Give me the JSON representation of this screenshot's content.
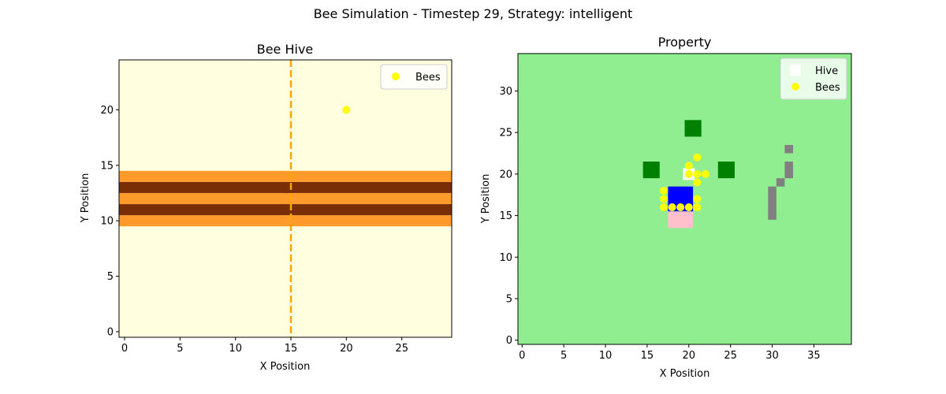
{
  "figure": {
    "suptitle": "Bee Simulation - Timestep 29, Strategy: intelligent"
  },
  "chart_data": [
    {
      "type": "scatter",
      "title": "Bee Hive",
      "xlabel": "X Position",
      "ylabel": "Y Position",
      "xlim": [
        -0.5,
        29.5
      ],
      "ylim": [
        -0.5,
        24.5
      ],
      "xticks": [
        0,
        5,
        10,
        15,
        20,
        25
      ],
      "yticks": [
        0,
        5,
        10,
        15,
        20
      ],
      "grid": false,
      "background_color": "#ffffe0",
      "legend": {
        "position": "top-right",
        "entries": [
          "Bees"
        ]
      },
      "comb_bands": [
        {
          "y_from": 9.5,
          "y_to": 10.5,
          "color": "#ff9a2b"
        },
        {
          "y_from": 10.5,
          "y_to": 11.5,
          "color": "#7a2e06"
        },
        {
          "y_from": 11.5,
          "y_to": 12.5,
          "color": "#ff9a2b"
        },
        {
          "y_from": 12.5,
          "y_to": 13.5,
          "color": "#7a2e06"
        },
        {
          "y_from": 13.5,
          "y_to": 14.5,
          "color": "#ff9a2b"
        }
      ],
      "entrance_line": {
        "x": 15,
        "style": "dashed",
        "color": "#ffa500"
      },
      "series": [
        {
          "name": "Bees",
          "color": "#ffff00",
          "points": [
            [
              20,
              20
            ]
          ]
        }
      ]
    },
    {
      "type": "scatter",
      "title": "Property",
      "xlabel": "X Position",
      "ylabel": "Y Position",
      "xlim": [
        -0.5,
        39.5
      ],
      "ylim": [
        -0.5,
        34.5
      ],
      "xticks": [
        0,
        5,
        10,
        15,
        20,
        25,
        30,
        35
      ],
      "yticks": [
        0,
        5,
        10,
        15,
        20,
        25,
        30
      ],
      "grid": false,
      "background_color": "#90ee90",
      "legend": {
        "position": "top-right",
        "entries": [
          "Hive",
          "Bees"
        ]
      },
      "regions": [
        {
          "kind": "flower",
          "color": "#008000",
          "x_from": 19.5,
          "x_to": 21.5,
          "y_from": 24.5,
          "y_to": 26.5
        },
        {
          "kind": "flower",
          "color": "#008000",
          "x_from": 14.5,
          "x_to": 16.5,
          "y_from": 19.5,
          "y_to": 21.5
        },
        {
          "kind": "flower",
          "color": "#008000",
          "x_from": 23.5,
          "x_to": 25.5,
          "y_from": 19.5,
          "y_to": 21.5
        },
        {
          "kind": "water",
          "color": "#0000ff",
          "x_from": 17.5,
          "x_to": 20.5,
          "y_from": 15.5,
          "y_to": 18.5
        },
        {
          "kind": "pink",
          "color": "#ffc0cb",
          "x_from": 17.5,
          "x_to": 20.5,
          "y_from": 13.5,
          "y_to": 15.5
        },
        {
          "kind": "obstacle",
          "color": "#808080",
          "x_from": 31.5,
          "x_to": 32.5,
          "y_from": 22.5,
          "y_to": 23.5
        },
        {
          "kind": "obstacle",
          "color": "#808080",
          "x_from": 31.5,
          "x_to": 32.5,
          "y_from": 19.5,
          "y_to": 21.5
        },
        {
          "kind": "obstacle",
          "color": "#808080",
          "x_from": 30.5,
          "x_to": 31.5,
          "y_from": 18.5,
          "y_to": 19.5
        },
        {
          "kind": "obstacle",
          "color": "#808080",
          "x_from": 29.5,
          "x_to": 30.5,
          "y_from": 14.5,
          "y_to": 18.5
        }
      ],
      "series": [
        {
          "name": "Hive",
          "color": "#ffffff",
          "marker": "square",
          "points": [
            [
              20,
              20
            ]
          ]
        },
        {
          "name": "Bees",
          "color": "#ffff00",
          "marker": "circle",
          "points": [
            [
              21,
              22
            ],
            [
              20,
              21
            ],
            [
              20,
              20
            ],
            [
              21,
              20
            ],
            [
              22,
              20
            ],
            [
              21,
              19
            ],
            [
              17,
              18
            ],
            [
              17,
              17
            ],
            [
              21,
              17
            ],
            [
              17,
              16
            ],
            [
              18,
              16
            ],
            [
              19,
              16
            ],
            [
              20,
              16
            ],
            [
              21,
              16
            ]
          ]
        }
      ]
    }
  ]
}
